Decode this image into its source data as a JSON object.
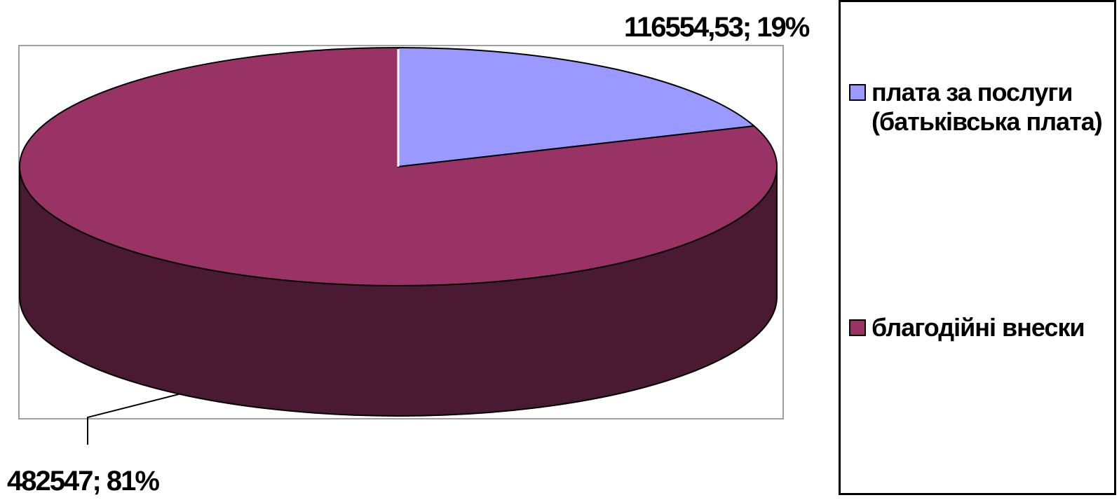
{
  "chart_data": {
    "type": "pie",
    "style": "3d",
    "categories": [
      "плата за послуги (батьківська плата)",
      "благодійні внески"
    ],
    "values": [
      116554.53,
      482547
    ],
    "percent_labels": [
      "19%",
      "81%"
    ],
    "data_labels": [
      "116554,53; 19%",
      "482547; 81%"
    ],
    "colors": [
      "#9999FF",
      "#993366"
    ],
    "side_colors": [
      "#5C5C99",
      "#4A1A33"
    ],
    "legend_position": "right",
    "title": ""
  },
  "legend": {
    "items": [
      {
        "label": "плата за послуги (батьківська плата)",
        "color": "#9999FF"
      },
      {
        "label": "благодійні внески",
        "color": "#993366"
      }
    ]
  }
}
